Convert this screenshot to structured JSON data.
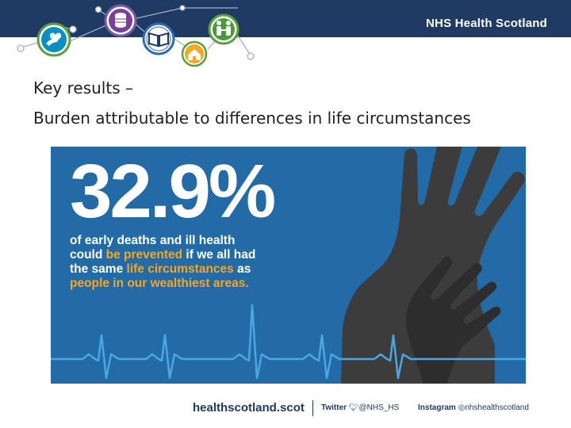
{
  "header": {
    "brand": "NHS Health Scotland",
    "colors": {
      "bar": "#1f3b63",
      "accent": "#f5a623"
    },
    "icons": [
      "hand-holding-heart-icon",
      "coins-icon",
      "book-icon",
      "family-icon",
      "home-icon"
    ]
  },
  "slide": {
    "title_line1": "Key results –",
    "title_line2": "Burden attributable to differences in life circumstances"
  },
  "infographic": {
    "stat": "32.9%",
    "line1": "of early deaths and ill health",
    "line2_a": "could ",
    "line2_b": "be prevented",
    "line2_c": " if we all had",
    "line3_a": "the same ",
    "line3_b": "life circumstances",
    "line3_c": " as",
    "line4": "people in our wealthiest areas.",
    "colors": {
      "background": "#236ba6",
      "hands": "#3c3c3c",
      "heartbeat": "#4aa7e0",
      "highlight": "#f5a623"
    }
  },
  "footer": {
    "website": "healthscotland.scot",
    "twitter_label": "Twitter",
    "twitter_handle": "@NHS_HS",
    "instagram_label": "Instagram",
    "instagram_handle": "nhshealthscotland"
  }
}
